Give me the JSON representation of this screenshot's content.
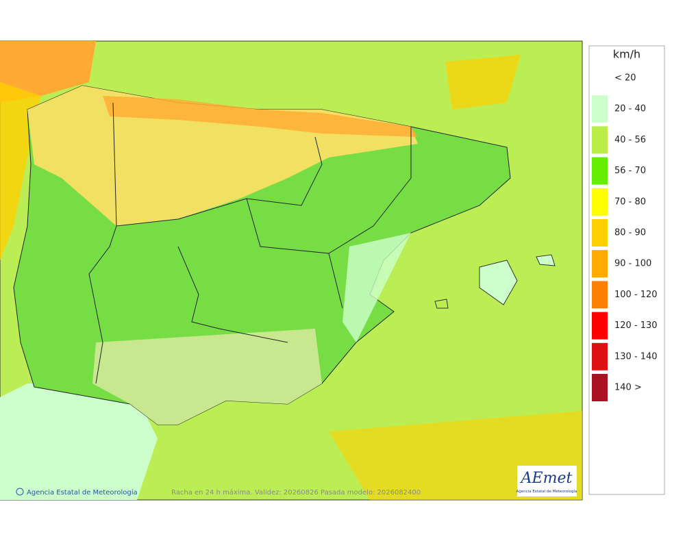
{
  "legend": {
    "title": "km/h",
    "items": [
      {
        "label": "< 20",
        "color": "#ffffff"
      },
      {
        "label": "20 - 40",
        "color": "#ccffcc"
      },
      {
        "label": "40 - 56",
        "color": "#bbee44"
      },
      {
        "label": "56 - 70",
        "color": "#66ee00"
      },
      {
        "label": "70 - 80",
        "color": "#ffff00"
      },
      {
        "label": "80 - 90",
        "color": "#ffd000"
      },
      {
        "label": "90 - 100",
        "color": "#ffaa00"
      },
      {
        "label": "100 - 120",
        "color": "#ff8000"
      },
      {
        "label": "120 - 130",
        "color": "#ff0000"
      },
      {
        "label": "130 - 140",
        "color": "#dd1111"
      },
      {
        "label": "140 >",
        "color": "#aa1122"
      }
    ]
  },
  "footer": {
    "credit": "Agencia Estatal de Meteorología",
    "caption": "Racha en 24 h máxima. Validez: 20260826 Pasada modelo: 2026082400"
  },
  "logo": {
    "name": "AEmet",
    "subtitle": "Agencia Estatal de Meteorología"
  }
}
